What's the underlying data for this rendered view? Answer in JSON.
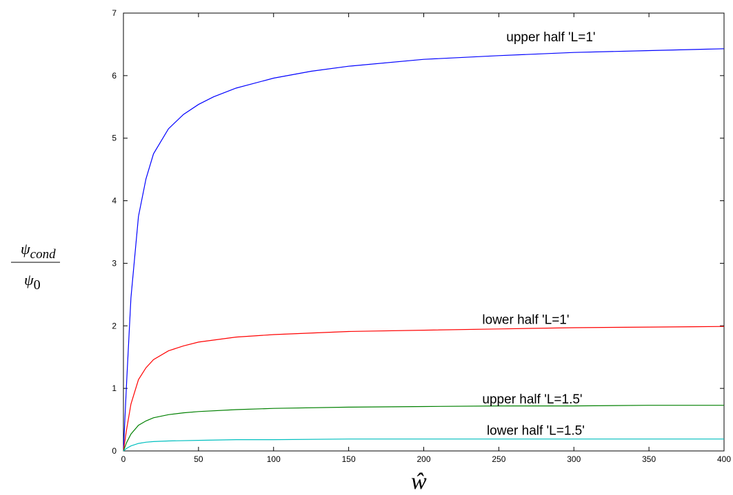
{
  "chart_data": {
    "type": "line",
    "title": "",
    "xlabel": "ŵ",
    "ylabel": {
      "numerator_symbol": "ψ",
      "numerator_subscript": "cond",
      "denominator_symbol": "ψ",
      "denominator_subscript": "0"
    },
    "xlim": [
      0,
      400
    ],
    "ylim": [
      0,
      7
    ],
    "xticks": [
      0,
      50,
      100,
      150,
      200,
      250,
      300,
      350,
      400
    ],
    "yticks": [
      0,
      1,
      2,
      3,
      4,
      5,
      6,
      7
    ],
    "grid": false,
    "legend": "none",
    "series": [
      {
        "color": "#0000ff",
        "x": [
          0,
          2,
          5,
          10,
          15,
          20,
          30,
          40,
          50,
          60,
          75,
          100,
          125,
          150,
          200,
          250,
          300,
          350,
          400
        ],
        "y": [
          0,
          1.05,
          2.45,
          3.75,
          4.35,
          4.75,
          5.15,
          5.38,
          5.54,
          5.66,
          5.8,
          5.96,
          6.07,
          6.15,
          6.26,
          6.32,
          6.37,
          6.4,
          6.43
        ]
      },
      {
        "color": "#ff0000",
        "x": [
          0,
          2,
          5,
          10,
          15,
          20,
          30,
          40,
          50,
          75,
          100,
          150,
          200,
          250,
          300,
          350,
          400
        ],
        "y": [
          0,
          0.33,
          0.75,
          1.14,
          1.33,
          1.46,
          1.6,
          1.68,
          1.74,
          1.82,
          1.86,
          1.91,
          1.93,
          1.95,
          1.97,
          1.98,
          1.99
        ]
      },
      {
        "color": "#008000",
        "x": [
          0,
          2,
          5,
          10,
          15,
          20,
          30,
          40,
          50,
          75,
          100,
          150,
          200,
          250,
          300,
          350,
          400
        ],
        "y": [
          0,
          0.13,
          0.27,
          0.41,
          0.48,
          0.53,
          0.58,
          0.61,
          0.63,
          0.66,
          0.68,
          0.7,
          0.71,
          0.72,
          0.72,
          0.73,
          0.73
        ]
      },
      {
        "color": "#00bfbf",
        "x": [
          0,
          2,
          5,
          10,
          15,
          20,
          30,
          50,
          75,
          100,
          150,
          200,
          250,
          300,
          350,
          400
        ],
        "y": [
          0,
          0.04,
          0.08,
          0.12,
          0.14,
          0.15,
          0.16,
          0.17,
          0.18,
          0.18,
          0.19,
          0.19,
          0.19,
          0.19,
          0.19,
          0.19
        ]
      }
    ],
    "annotations": [
      {
        "text": "upper half 'L=1'",
        "x": 255,
        "y": 6.55
      },
      {
        "text": "lower half 'L=1'",
        "x": 239,
        "y": 2.03
      },
      {
        "text": "upper half 'L=1.5'",
        "x": 239,
        "y": 0.76
      },
      {
        "text": "lower half 'L=1.5'",
        "x": 242,
        "y": 0.26
      }
    ]
  }
}
